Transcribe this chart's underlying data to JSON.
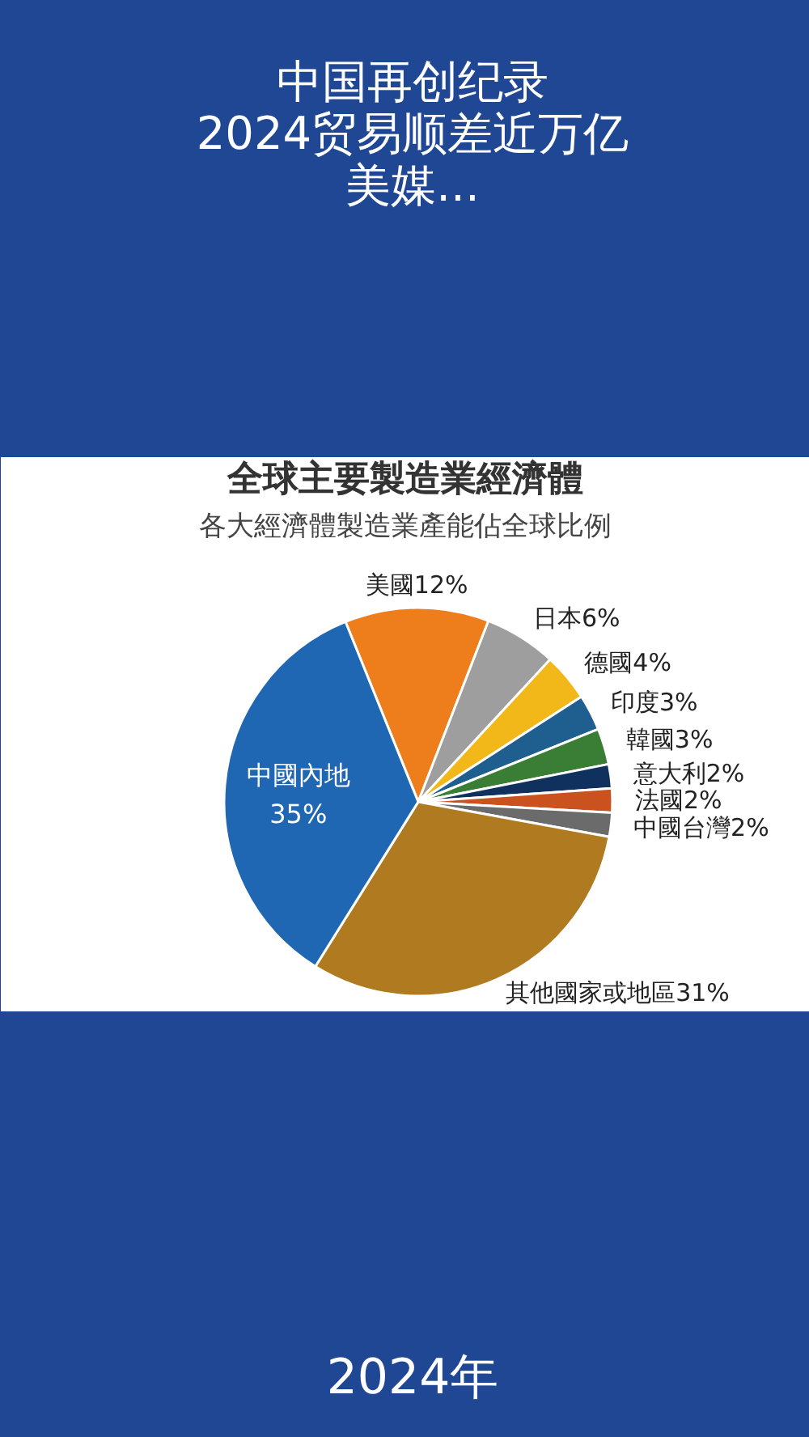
{
  "chart_data": {
    "type": "pie",
    "title": "全球主要製造業經濟體",
    "subtitle": "各大經濟體製造業產能佔全球比例",
    "categories": [
      "美國",
      "日本",
      "德國",
      "印度",
      "韓國",
      "意大利",
      "法國",
      "中國台灣",
      "其他國家或地區",
      "中國內地"
    ],
    "values": [
      12,
      6,
      4,
      3,
      3,
      2,
      2,
      2,
      31,
      35
    ],
    "value_labels": [
      "12%",
      "6%",
      "4%",
      "3%",
      "3%",
      "2%",
      "2%",
      "2%",
      "31%",
      "35%"
    ],
    "colors": [
      "#ee7d1b",
      "#9e9e9e",
      "#f2b81a",
      "#1e5f8f",
      "#3a7d34",
      "#10305e",
      "#c9521e",
      "#6b6b6b",
      "#b07a20",
      "#1f66b3"
    ],
    "annotations": [
      "中国再创纪录",
      "2024贸易顺差近万亿",
      "美媒...",
      "2024年"
    ]
  }
}
